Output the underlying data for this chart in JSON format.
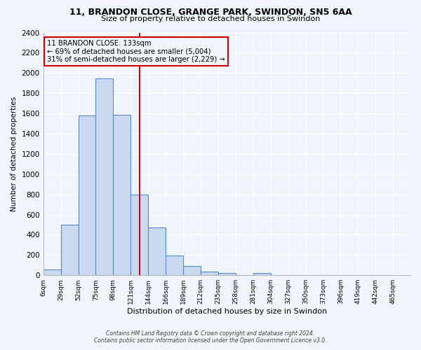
{
  "title1": "11, BRANDON CLOSE, GRANGE PARK, SWINDON, SN5 6AA",
  "title2": "Size of property relative to detached houses in Swindon",
  "xlabel": "Distribution of detached houses by size in Swindon",
  "ylabel": "Number of detached properties",
  "bin_labels": [
    "6sqm",
    "29sqm",
    "52sqm",
    "75sqm",
    "98sqm",
    "121sqm",
    "144sqm",
    "166sqm",
    "189sqm",
    "212sqm",
    "235sqm",
    "258sqm",
    "281sqm",
    "304sqm",
    "327sqm",
    "350sqm",
    "373sqm",
    "396sqm",
    "419sqm",
    "442sqm",
    "465sqm"
  ],
  "bin_values": [
    55,
    500,
    1580,
    1950,
    1590,
    800,
    475,
    195,
    90,
    35,
    25,
    0,
    20,
    0,
    0,
    0,
    0,
    0,
    0,
    0
  ],
  "bar_color": "#c9d9f0",
  "bar_edge_color": "#5b8cc8",
  "property_line_x": 5.5,
  "property_line_color": "#cc0000",
  "annotation_line1": "11 BRANDON CLOSE: 133sqm",
  "annotation_line2": "← 69% of detached houses are smaller (5,004)",
  "annotation_line3": "31% of semi-detached houses are larger (2,229) →",
  "annotation_box_color": "#cc0000",
  "ylim": [
    0,
    2400
  ],
  "yticks": [
    0,
    200,
    400,
    600,
    800,
    1000,
    1200,
    1400,
    1600,
    1800,
    2000,
    2200,
    2400
  ],
  "footer1": "Contains HM Land Registry data © Crown copyright and database right 2024.",
  "footer2": "Contains public sector information licensed under the Open Government Licence v3.0.",
  "background_color": "#f0f4fb",
  "grid_color": "#ffffff"
}
